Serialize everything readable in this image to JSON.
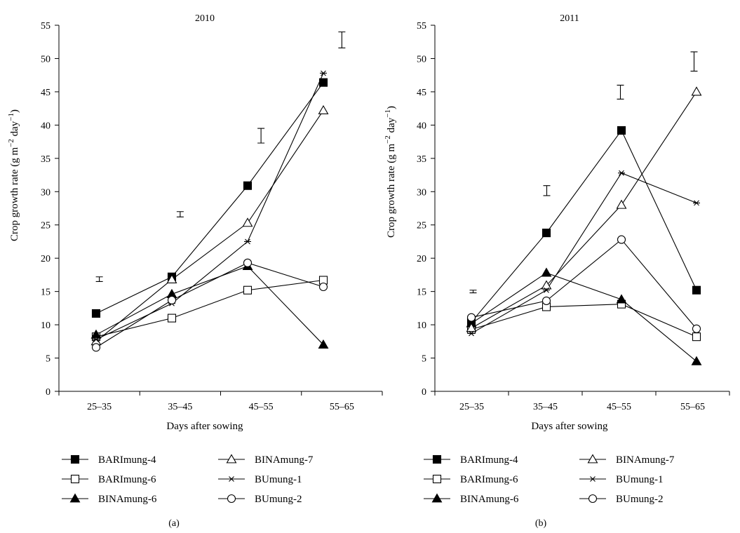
{
  "chart_data": [
    {
      "type": "line",
      "title": "2010",
      "caption": "(a)",
      "xlabel": "Days after sowing",
      "ylabel": "Crop growth rate (g m",
      "ylabel_exp1": "−2",
      "ylabel_mid": " day",
      "ylabel_exp2": "−1",
      "ylabel_end": ")",
      "categories": [
        "25–35",
        "35–45",
        "45–55",
        "55–65"
      ],
      "ylim": [
        0,
        55
      ],
      "yticks": [
        0,
        5,
        10,
        15,
        20,
        25,
        30,
        35,
        40,
        45,
        50,
        55
      ],
      "series": [
        {
          "name": "BARImung-4",
          "marker": "square-filled",
          "values": [
            11.7,
            17.2,
            30.9,
            46.4
          ]
        },
        {
          "name": "BARImung-6",
          "marker": "square-open",
          "values": [
            8.2,
            11.0,
            15.2,
            16.7
          ]
        },
        {
          "name": "BINAmung-6",
          "marker": "triangle-filled",
          "values": [
            8.5,
            14.6,
            18.8,
            7.0
          ]
        },
        {
          "name": "BINAmung-7",
          "marker": "triangle-open",
          "values": [
            7.5,
            16.8,
            25.3,
            42.2
          ]
        },
        {
          "name": "BUmung-1",
          "marker": "star",
          "values": [
            7.8,
            13.2,
            22.5,
            47.8
          ]
        },
        {
          "name": "BUmung-2",
          "marker": "circle-open",
          "values": [
            6.6,
            13.7,
            19.3,
            15.7
          ]
        }
      ],
      "error_bars": [
        {
          "x": "25–35",
          "low": 16.5,
          "high": 17.2
        },
        {
          "x": "35–45",
          "low": 26.2,
          "high": 27.0
        },
        {
          "x": "45–55",
          "low": 37.3,
          "high": 39.5
        },
        {
          "x": "55–65",
          "low": 51.6,
          "high": 54.0
        }
      ],
      "legend_position": "bottom"
    },
    {
      "type": "line",
      "title": "2011",
      "caption": "(b)",
      "xlabel": "Days after sowing",
      "ylabel": "Crop growth rate (g m",
      "ylabel_exp1": "−2",
      "ylabel_mid": " day",
      "ylabel_exp2": "−1",
      "ylabel_end": ")",
      "categories": [
        "25–35",
        "35–45",
        "45–55",
        "55–65"
      ],
      "ylim": [
        0,
        55
      ],
      "yticks": [
        0,
        5,
        10,
        15,
        20,
        25,
        30,
        35,
        40,
        45,
        50,
        55
      ],
      "series": [
        {
          "name": "BARImung-4",
          "marker": "square-filled",
          "values": [
            10.4,
            23.8,
            39.2,
            15.2
          ]
        },
        {
          "name": "BARImung-6",
          "marker": "square-open",
          "values": [
            9.3,
            12.7,
            13.1,
            8.2
          ]
        },
        {
          "name": "BINAmung-6",
          "marker": "triangle-filled",
          "values": [
            10.2,
            17.8,
            13.8,
            4.5
          ]
        },
        {
          "name": "BINAmung-7",
          "marker": "triangle-open",
          "values": [
            9.5,
            15.9,
            28.0,
            45.0
          ]
        },
        {
          "name": "BUmung-1",
          "marker": "star",
          "values": [
            8.7,
            15.2,
            32.8,
            28.3
          ]
        },
        {
          "name": "BUmung-2",
          "marker": "circle-open",
          "values": [
            11.1,
            13.6,
            22.8,
            9.4
          ]
        }
      ],
      "error_bars": [
        {
          "x": "25–35",
          "low": 14.8,
          "high": 15.2
        },
        {
          "x": "35–45",
          "low": 29.4,
          "high": 30.9
        },
        {
          "x": "45–55",
          "low": 43.9,
          "high": 46.0
        },
        {
          "x": "55–65",
          "low": 48.1,
          "high": 51.0
        }
      ],
      "legend_position": "bottom"
    }
  ]
}
